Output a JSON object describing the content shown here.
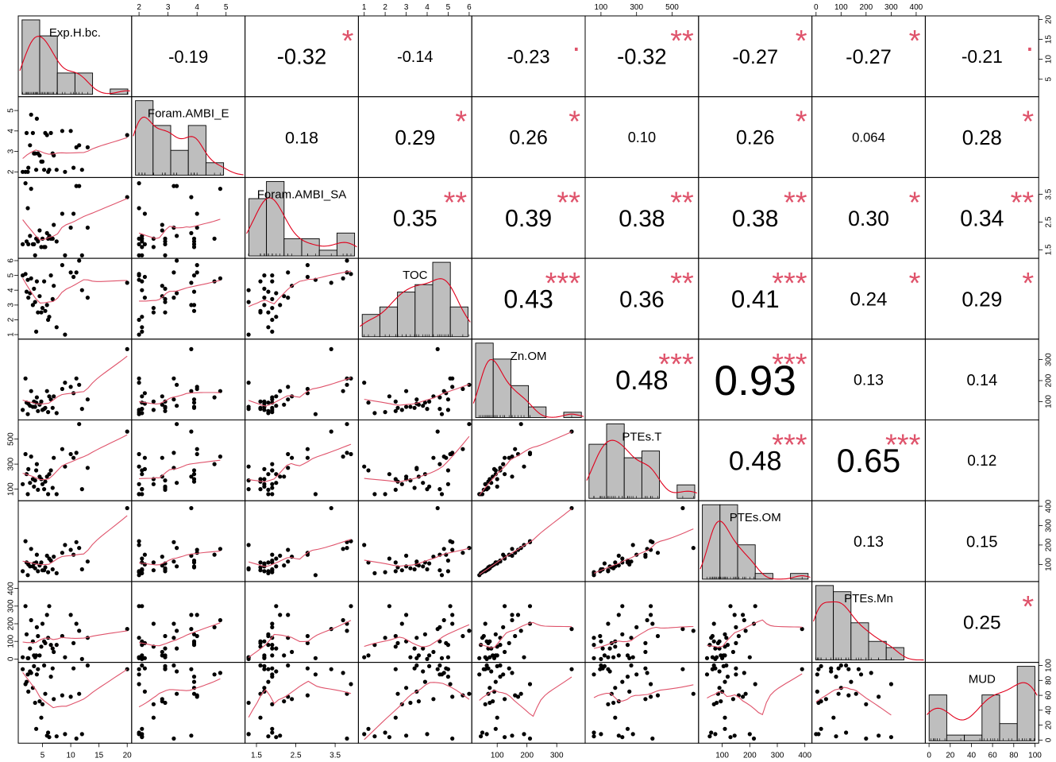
{
  "chart_data": {
    "type": "scatter",
    "title": "",
    "variables": [
      "Exp.H.bc.",
      "Foram.AMBI_E",
      "Foram.AMBI_SA",
      "TOC",
      "Zn.OM",
      "PTEs.T",
      "PTEs.OM",
      "PTEs.Mn",
      "MUD"
    ],
    "ranges": [
      [
        1,
        20.5
      ],
      [
        1.8,
        5.6
      ],
      [
        1.25,
        4.05
      ],
      [
        0.8,
        6.05
      ],
      [
        20,
        390
      ],
      [
        20,
        640
      ],
      [
        20,
        420
      ],
      [
        -10,
        430
      ],
      [
        -2,
        102
      ]
    ],
    "ticks": [
      {
        "values": [
          5,
          10,
          15,
          20
        ],
        "labels": [
          "5",
          "10",
          "15",
          "20"
        ]
      },
      {
        "values": [
          2,
          3,
          4,
          5
        ],
        "labels": [
          "2",
          "3",
          "4",
          "5"
        ]
      },
      {
        "values": [
          1.5,
          2.5,
          3.5
        ],
        "labels": [
          "1.5",
          "2.5",
          "3.5"
        ]
      },
      {
        "values": [
          1,
          2,
          3,
          4,
          5,
          6
        ],
        "labels": [
          "1",
          "2",
          "3",
          "4",
          "5",
          "6"
        ]
      },
      {
        "values": [
          100,
          200,
          300
        ],
        "labels": [
          "100",
          "200",
          "300"
        ]
      },
      {
        "values": [
          100,
          300,
          500
        ],
        "labels": [
          "100",
          "300",
          "500"
        ]
      },
      {
        "values": [
          100,
          200,
          300,
          400
        ],
        "labels": [
          "100",
          "200",
          "300",
          "400"
        ]
      },
      {
        "values": [
          0,
          100,
          200,
          300,
          400
        ],
        "labels": [
          "0",
          "100",
          "200",
          "300",
          "400"
        ]
      },
      {
        "values": [
          0,
          20,
          40,
          60,
          80,
          100
        ],
        "labels": [
          "0",
          "20",
          "40",
          "60",
          "80",
          "100"
        ]
      }
    ],
    "correlations": [
      {
        "row": 0,
        "col": 1,
        "r": "-0.19",
        "stars": ""
      },
      {
        "row": 0,
        "col": 2,
        "r": "-0.32",
        "stars": "*"
      },
      {
        "row": 0,
        "col": 3,
        "r": "-0.14",
        "stars": ""
      },
      {
        "row": 0,
        "col": 4,
        "r": "-0.23",
        "stars": "."
      },
      {
        "row": 0,
        "col": 5,
        "r": "-0.32",
        "stars": "**"
      },
      {
        "row": 0,
        "col": 6,
        "r": "-0.27",
        "stars": "*"
      },
      {
        "row": 0,
        "col": 7,
        "r": "-0.27",
        "stars": "*"
      },
      {
        "row": 0,
        "col": 8,
        "r": "-0.21",
        "stars": "."
      },
      {
        "row": 1,
        "col": 2,
        "r": "0.18",
        "stars": ""
      },
      {
        "row": 1,
        "col": 3,
        "r": "0.29",
        "stars": "*"
      },
      {
        "row": 1,
        "col": 4,
        "r": "0.26",
        "stars": "*"
      },
      {
        "row": 1,
        "col": 5,
        "r": "0.10",
        "stars": ""
      },
      {
        "row": 1,
        "col": 6,
        "r": "0.26",
        "stars": "*"
      },
      {
        "row": 1,
        "col": 7,
        "r": "0.064",
        "stars": ""
      },
      {
        "row": 1,
        "col": 8,
        "r": "0.28",
        "stars": "*"
      },
      {
        "row": 2,
        "col": 3,
        "r": "0.35",
        "stars": "**"
      },
      {
        "row": 2,
        "col": 4,
        "r": "0.39",
        "stars": "**"
      },
      {
        "row": 2,
        "col": 5,
        "r": "0.38",
        "stars": "**"
      },
      {
        "row": 2,
        "col": 6,
        "r": "0.38",
        "stars": "**"
      },
      {
        "row": 2,
        "col": 7,
        "r": "0.30",
        "stars": "*"
      },
      {
        "row": 2,
        "col": 8,
        "r": "0.34",
        "stars": "**"
      },
      {
        "row": 3,
        "col": 4,
        "r": "0.43",
        "stars": "***"
      },
      {
        "row": 3,
        "col": 5,
        "r": "0.36",
        "stars": "**"
      },
      {
        "row": 3,
        "col": 6,
        "r": "0.41",
        "stars": "***"
      },
      {
        "row": 3,
        "col": 7,
        "r": "0.24",
        "stars": "*"
      },
      {
        "row": 3,
        "col": 8,
        "r": "0.29",
        "stars": "*"
      },
      {
        "row": 4,
        "col": 5,
        "r": "0.48",
        "stars": "***"
      },
      {
        "row": 4,
        "col": 6,
        "r": "0.93",
        "stars": "***"
      },
      {
        "row": 4,
        "col": 7,
        "r": "0.13",
        "stars": ""
      },
      {
        "row": 4,
        "col": 8,
        "r": "0.14",
        "stars": ""
      },
      {
        "row": 5,
        "col": 6,
        "r": "0.48",
        "stars": "***"
      },
      {
        "row": 5,
        "col": 7,
        "r": "0.65",
        "stars": "***"
      },
      {
        "row": 5,
        "col": 8,
        "r": "0.12",
        "stars": ""
      },
      {
        "row": 6,
        "col": 7,
        "r": "0.13",
        "stars": ""
      },
      {
        "row": 6,
        "col": 8,
        "r": "0.15",
        "stars": ""
      },
      {
        "row": 7,
        "col": 8,
        "r": "0.25",
        "stars": "*"
      }
    ],
    "observations": [
      [
        2.0,
        2.0,
        3.9,
        5.1,
        210,
        380,
        220,
        300,
        75
      ],
      [
        3.0,
        4.8,
        3.7,
        4.8,
        150,
        360,
        180,
        220,
        90
      ],
      [
        4.0,
        4.6,
        1.9,
        4.6,
        120,
        300,
        150,
        180,
        88
      ],
      [
        2.2,
        3.9,
        1.8,
        3.9,
        95,
        220,
        110,
        140,
        78
      ],
      [
        3.3,
        3.9,
        1.7,
        3.0,
        75,
        180,
        90,
        100,
        70
      ],
      [
        5.5,
        3.9,
        1.6,
        2.6,
        70,
        160,
        85,
        90,
        62
      ],
      [
        6.5,
        3.9,
        1.9,
        5.0,
        110,
        250,
        120,
        80,
        85
      ],
      [
        7.0,
        2.8,
        2.4,
        4.3,
        125,
        350,
        140,
        40,
        55
      ],
      [
        4.5,
        2.8,
        2.2,
        3.6,
        85,
        200,
        95,
        20,
        52
      ],
      [
        3.7,
        2.9,
        1.3,
        3.2,
        75,
        170,
        80,
        10,
        50
      ],
      [
        2.5,
        2.2,
        1.7,
        3.5,
        90,
        260,
        100,
        5,
        65
      ],
      [
        5.0,
        2.5,
        1.9,
        2.8,
        60,
        140,
        70,
        200,
        48
      ],
      [
        6.0,
        2.0,
        1.9,
        2.0,
        50,
        60,
        60,
        120,
        10
      ],
      [
        7.5,
        2.1,
        1.8,
        1.5,
        45,
        60,
        55,
        80,
        5
      ],
      [
        2.8,
        3.3,
        2.0,
        3.8,
        80,
        150,
        90,
        60,
        92
      ],
      [
        4.2,
        2.9,
        1.8,
        2.5,
        55,
        95,
        65,
        130,
        95
      ],
      [
        5.3,
        2.1,
        1.6,
        4.6,
        65,
        100,
        70,
        100,
        100
      ],
      [
        3.5,
        2.9,
        1.7,
        4.1,
        100,
        120,
        105,
        20,
        99
      ],
      [
        1.5,
        2.0,
        1.7,
        5.0,
        60,
        140,
        65,
        10,
        95
      ],
      [
        8.5,
        4.0,
        2.8,
        5.7,
        160,
        420,
        160,
        130,
        60
      ],
      [
        10.0,
        4.0,
        2.3,
        5.2,
        170,
        380,
        175,
        250,
        58
      ],
      [
        11.5,
        3.3,
        3.8,
        6.0,
        180,
        620,
        185,
        160,
        62
      ],
      [
        11.0,
        3.2,
        3.8,
        5.2,
        210,
        390,
        215,
        200,
        2
      ],
      [
        10.5,
        2.2,
        2.8,
        4.9,
        140,
        350,
        150,
        90,
        96
      ],
      [
        13.0,
        3.2,
        2.3,
        3.5,
        110,
        270,
        115,
        120,
        100
      ],
      [
        12.0,
        2.1,
        1.3,
        4.0,
        65,
        100,
        75,
        0,
        8
      ],
      [
        6.8,
        2.9,
        1.9,
        3.4,
        70,
        110,
        75,
        60,
        96
      ],
      [
        5.8,
        3.8,
        2.1,
        3.0,
        150,
        200,
        145,
        250,
        6
      ],
      [
        4.8,
        2.5,
        1.6,
        2.5,
        100,
        180,
        110,
        70,
        30
      ],
      [
        20.0,
        3.8,
        3.4,
        4.5,
        350,
        560,
        390,
        170,
        95
      ],
      [
        9.0,
        2.0,
        1.3,
        1.0,
        190,
        280,
        200,
        10,
        8
      ],
      [
        3.9,
        2.1,
        1.9,
        1.2,
        95,
        250,
        110,
        20,
        15
      ],
      [
        6.2,
        2.1,
        2.0,
        2.2,
        125,
        220,
        130,
        300,
        4
      ],
      [
        2.4,
        2.0,
        3.0,
        4.7,
        40,
        60,
        45,
        5,
        88
      ]
    ]
  }
}
